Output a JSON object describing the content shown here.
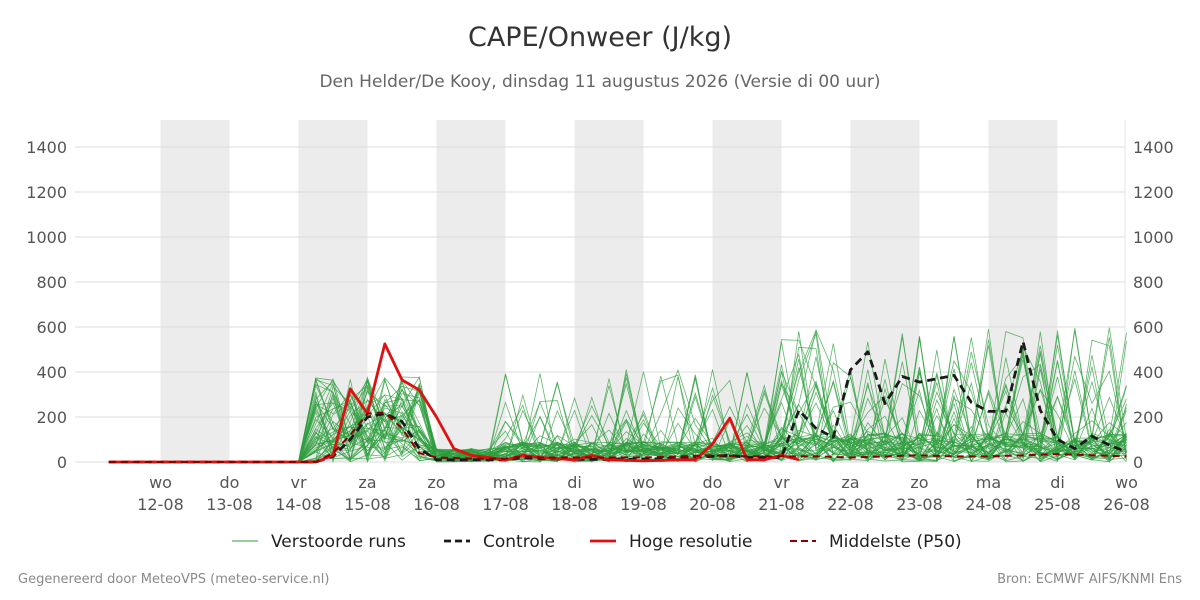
{
  "header": {
    "title": "CAPE/Onweer (J/kg)",
    "subtitle": "Den Helder/De Kooy, dinsdag 11 augustus 2026 (Versie di 00 uur)"
  },
  "footer": {
    "left": "Gegenereerd door MeteoVPS (meteo-service.nl)",
    "right": "Bron: ECMWF AIFS/KNMI Ens"
  },
  "colors": {
    "ensemble": "#2e9e3e",
    "control": "#1a1a1a",
    "high_res": "#dd1111",
    "median": "#8b0000",
    "weekend_band": "#ececec",
    "grid": "#dddddd"
  },
  "chart_data": {
    "type": "line",
    "title": "CAPE/Onweer (J/kg)",
    "ylim": [
      0,
      1520
    ],
    "xlim": [
      -0.75,
      14.0
    ],
    "y_ticks": [
      0,
      200,
      400,
      600,
      800,
      1000,
      1200,
      1400
    ],
    "y_tick_labels": [
      "0",
      "200",
      "400",
      "600",
      "800",
      "1000",
      "1200",
      "1400"
    ],
    "x_ticks": [
      {
        "x": 0,
        "day": "wo",
        "date": "12-08"
      },
      {
        "x": 1,
        "day": "do",
        "date": "13-08"
      },
      {
        "x": 2,
        "day": "vr",
        "date": "14-08"
      },
      {
        "x": 3,
        "day": "za",
        "date": "15-08"
      },
      {
        "x": 4,
        "day": "zo",
        "date": "16-08"
      },
      {
        "x": 5,
        "day": "ma",
        "date": "17-08"
      },
      {
        "x": 6,
        "day": "di",
        "date": "18-08"
      },
      {
        "x": 7,
        "day": "wo",
        "date": "19-08"
      },
      {
        "x": 8,
        "day": "do",
        "date": "20-08"
      },
      {
        "x": 9,
        "day": "vr",
        "date": "21-08"
      },
      {
        "x": 10,
        "day": "za",
        "date": "22-08"
      },
      {
        "x": 11,
        "day": "zo",
        "date": "23-08"
      },
      {
        "x": 12,
        "day": "ma",
        "date": "24-08"
      },
      {
        "x": 13,
        "day": "di",
        "date": "25-08"
      },
      {
        "x": 14,
        "day": "wo",
        "date": "26-08"
      }
    ],
    "shaded_bands": [
      [
        0,
        1
      ],
      [
        2,
        3
      ],
      [
        4,
        5
      ],
      [
        6,
        7
      ],
      [
        8,
        9
      ],
      [
        10,
        11
      ],
      [
        12,
        13
      ]
    ],
    "grid": true,
    "right_axis": true,
    "legend_position": "bottom",
    "legend": [
      "Verstoorde runs",
      "Controle",
      "Hoge resolutie",
      "Middelste (P50)"
    ],
    "ensemble_count": 50,
    "x_step": 0.25,
    "x_start": -0.75,
    "series": [
      {
        "name": "Controle",
        "style": "dashed",
        "points": [
          [
            -0.75,
            0
          ],
          [
            0,
            0
          ],
          [
            1,
            0
          ],
          [
            2,
            0
          ],
          [
            2.25,
            0
          ],
          [
            2.5,
            25
          ],
          [
            2.75,
            100
          ],
          [
            3,
            200
          ],
          [
            3.25,
            215
          ],
          [
            3.5,
            180
          ],
          [
            3.75,
            60
          ],
          [
            4,
            10
          ],
          [
            4.5,
            10
          ],
          [
            5,
            10
          ],
          [
            5.25,
            20
          ],
          [
            5.5,
            15
          ],
          [
            6,
            12
          ],
          [
            6.5,
            12
          ],
          [
            7,
            12
          ],
          [
            7.5,
            18
          ],
          [
            8,
            25
          ],
          [
            8.25,
            30
          ],
          [
            8.5,
            20
          ],
          [
            9,
            20
          ],
          [
            9.25,
            230
          ],
          [
            9.5,
            150
          ],
          [
            9.75,
            110
          ],
          [
            10,
            410
          ],
          [
            10.25,
            490
          ],
          [
            10.5,
            260
          ],
          [
            10.75,
            380
          ],
          [
            11,
            355
          ],
          [
            11.25,
            370
          ],
          [
            11.5,
            385
          ],
          [
            11.75,
            265
          ],
          [
            12,
            225
          ],
          [
            12.25,
            225
          ],
          [
            12.5,
            535
          ],
          [
            12.75,
            230
          ],
          [
            13,
            100
          ],
          [
            13.25,
            60
          ],
          [
            13.5,
            115
          ],
          [
            13.75,
            75
          ],
          [
            14,
            45
          ]
        ]
      },
      {
        "name": "Hoge resolutie",
        "style": "solid",
        "points": [
          [
            -0.75,
            0
          ],
          [
            0,
            0
          ],
          [
            1,
            0
          ],
          [
            2,
            0
          ],
          [
            2.25,
            0
          ],
          [
            2.5,
            30
          ],
          [
            2.75,
            325
          ],
          [
            3,
            215
          ],
          [
            3.25,
            525
          ],
          [
            3.5,
            365
          ],
          [
            3.75,
            320
          ],
          [
            4,
            200
          ],
          [
            4.25,
            60
          ],
          [
            4.5,
            30
          ],
          [
            5,
            10
          ],
          [
            5.25,
            30
          ],
          [
            5.5,
            20
          ],
          [
            6,
            10
          ],
          [
            6.25,
            30
          ],
          [
            6.5,
            10
          ],
          [
            7,
            5
          ],
          [
            7.5,
            10
          ],
          [
            7.75,
            10
          ],
          [
            8,
            80
          ],
          [
            8.25,
            195
          ],
          [
            8.5,
            10
          ],
          [
            8.75,
            10
          ],
          [
            9,
            30
          ],
          [
            9.25,
            10
          ]
        ]
      },
      {
        "name": "Middelste (P50)",
        "style": "dashed",
        "points": [
          [
            -0.75,
            0
          ],
          [
            0,
            0
          ],
          [
            1,
            0
          ],
          [
            2,
            0
          ],
          [
            2.25,
            0
          ],
          [
            2.5,
            40
          ],
          [
            2.75,
            120
          ],
          [
            3,
            215
          ],
          [
            3.25,
            220
          ],
          [
            3.5,
            150
          ],
          [
            3.75,
            40
          ],
          [
            4,
            20
          ],
          [
            4.5,
            15
          ],
          [
            5,
            15
          ],
          [
            5.25,
            25
          ],
          [
            5.5,
            20
          ],
          [
            6,
            20
          ],
          [
            6.5,
            20
          ],
          [
            7,
            20
          ],
          [
            7.5,
            25
          ],
          [
            8,
            30
          ],
          [
            8.5,
            25
          ],
          [
            9,
            25
          ],
          [
            9.5,
            25
          ],
          [
            10,
            20
          ],
          [
            10.5,
            25
          ],
          [
            11,
            30
          ],
          [
            11.5,
            25
          ],
          [
            12,
            25
          ],
          [
            12.5,
            30
          ],
          [
            13,
            35
          ],
          [
            13.5,
            30
          ],
          [
            14,
            25
          ]
        ]
      }
    ]
  }
}
